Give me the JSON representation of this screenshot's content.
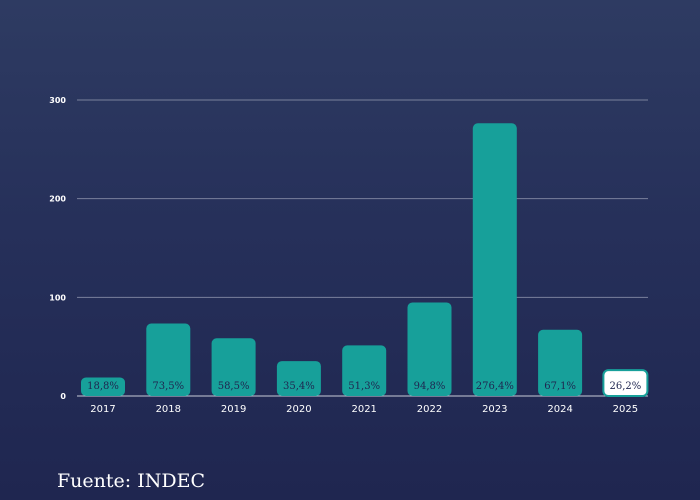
{
  "chart_data": {
    "type": "bar",
    "categories": [
      "2017",
      "2018",
      "2019",
      "2020",
      "2021",
      "2022",
      "2023",
      "2024",
      "2025"
    ],
    "values": [
      18.8,
      73.5,
      58.5,
      35.4,
      51.3,
      94.8,
      276.4,
      67.1,
      26.2
    ],
    "value_labels": [
      "18,8%",
      "73,5%",
      "58,5%",
      "35,4%",
      "51,3%",
      "94,8%",
      "276,4%",
      "67,1%",
      "26,2%"
    ],
    "ylim": [
      0,
      300
    ],
    "yticks": [
      "0",
      "100",
      "200",
      "300"
    ],
    "grid": true,
    "colors": {
      "bar": "#17a09a",
      "highlight_bar": "#ffffff",
      "highlight_border": "#17a09a",
      "label": "#1f2650",
      "tick": "#ffffff",
      "grid": "#7a819c"
    },
    "highlight_index": 8
  },
  "footer": {
    "source": "Fuente: INDEC"
  }
}
